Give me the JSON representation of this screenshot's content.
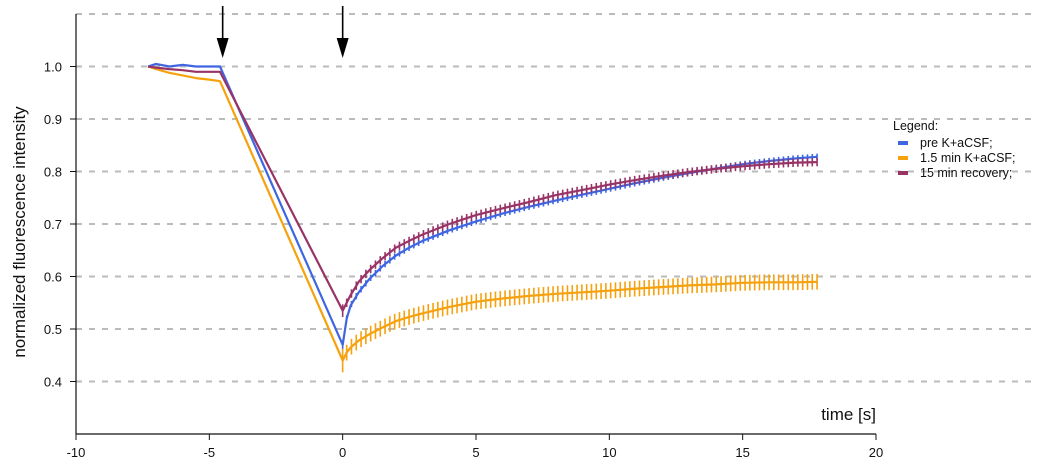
{
  "chart_data": {
    "type": "line",
    "title": "",
    "xlabel": "time [s]",
    "ylabel": "normalized fluorescence intensity",
    "xlim": [
      -10,
      20
    ],
    "ylim": [
      0.3,
      1.1
    ],
    "xticks": [
      -10,
      -5,
      0,
      5,
      10,
      15,
      20
    ],
    "xtick_labels": [
      "-10",
      "-5",
      "0",
      "5",
      "10",
      "15",
      "20"
    ],
    "yticks": [
      0.4,
      0.5,
      0.6,
      0.7,
      0.8,
      0.9,
      1.0
    ],
    "ytick_labels": [
      "0.4",
      "0.5",
      "0.6",
      "0.7",
      "0.8",
      "0.9",
      "1.0"
    ],
    "grid": "horizontal dashed",
    "legend": {
      "title": "Legend:",
      "placement": "right",
      "entries": [
        "pre K+aCSF;",
        "1.5 min K+aCSF;",
        "15 min recovery;"
      ]
    },
    "annotations": [
      {
        "type": "arrow-down",
        "x": -4.5
      },
      {
        "type": "arrow-down",
        "x": 0
      }
    ],
    "series": [
      {
        "name": "pre K+aCSF;",
        "color": "#3f66e0",
        "error": 0.006,
        "x": [
          -7.3,
          -7.0,
          -6.5,
          -6.0,
          -5.5,
          -5.0,
          -4.6,
          0,
          0.15,
          0.3,
          0.6,
          1.0,
          1.5,
          2.0,
          2.5,
          3.0,
          4.0,
          5.0,
          6.0,
          7.0,
          8.0,
          9.0,
          10.0,
          11.0,
          12.0,
          13.0,
          14.0,
          15.0,
          16.0,
          17.0,
          17.8
        ],
        "y": [
          1.0,
          1.005,
          1.0,
          1.003,
          1.0,
          1.0,
          1.0,
          0.47,
          0.52,
          0.545,
          0.57,
          0.595,
          0.62,
          0.64,
          0.655,
          0.668,
          0.688,
          0.705,
          0.72,
          0.733,
          0.745,
          0.756,
          0.767,
          0.778,
          0.788,
          0.797,
          0.806,
          0.814,
          0.82,
          0.825,
          0.828
        ]
      },
      {
        "name": "1.5 min K+aCSF;",
        "color": "#f6a10e",
        "error": 0.015,
        "x": [
          -7.3,
          -7.0,
          -6.5,
          -6.0,
          -5.5,
          -5.0,
          -4.6,
          0,
          0.15,
          0.3,
          0.6,
          1.0,
          1.5,
          2.0,
          2.5,
          3.0,
          4.0,
          5.0,
          6.0,
          7.0,
          8.0,
          9.0,
          10.0,
          11.0,
          12.0,
          13.0,
          14.0,
          15.0,
          16.0,
          17.0,
          17.8
        ],
        "y": [
          1.0,
          0.995,
          0.988,
          0.983,
          0.978,
          0.975,
          0.972,
          0.44,
          0.455,
          0.465,
          0.478,
          0.49,
          0.503,
          0.515,
          0.523,
          0.53,
          0.542,
          0.552,
          0.558,
          0.563,
          0.567,
          0.57,
          0.573,
          0.577,
          0.58,
          0.583,
          0.585,
          0.588,
          0.589,
          0.589,
          0.59
        ]
      },
      {
        "name": "15 min recovery;",
        "color": "#983366",
        "error": 0.008,
        "x": [
          -7.3,
          -7.0,
          -6.5,
          -6.0,
          -5.5,
          -5.0,
          -4.6,
          0,
          0.15,
          0.3,
          0.6,
          1.0,
          1.5,
          2.0,
          2.5,
          3.0,
          4.0,
          5.0,
          6.0,
          7.0,
          8.0,
          9.0,
          10.0,
          11.0,
          12.0,
          13.0,
          14.0,
          15.0,
          16.0,
          17.0,
          17.8
        ],
        "y": [
          1.0,
          0.998,
          0.995,
          0.993,
          0.99,
          0.99,
          0.99,
          0.535,
          0.55,
          0.565,
          0.59,
          0.612,
          0.635,
          0.655,
          0.668,
          0.68,
          0.7,
          0.717,
          0.73,
          0.742,
          0.755,
          0.765,
          0.775,
          0.784,
          0.792,
          0.799,
          0.805,
          0.81,
          0.814,
          0.817,
          0.818
        ]
      }
    ]
  }
}
